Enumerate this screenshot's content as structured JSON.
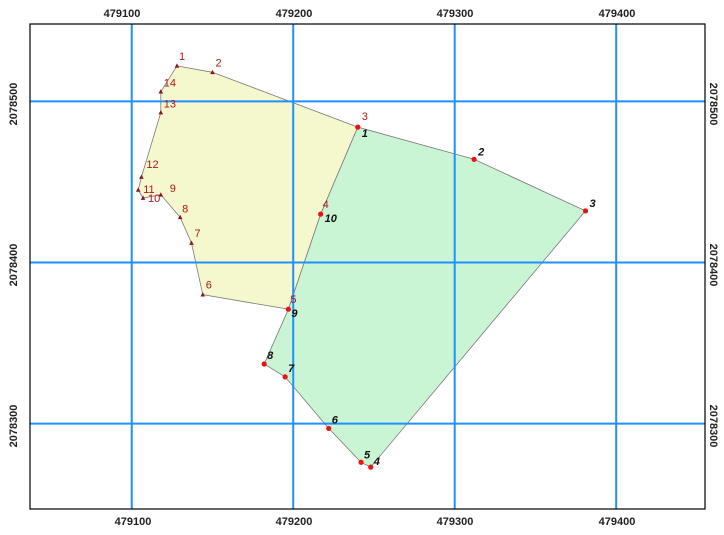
{
  "map": {
    "x_ticks": [
      "479100",
      "479200",
      "479300",
      "479400"
    ],
    "y_ticks": [
      "2078500",
      "2078400",
      "2078300"
    ],
    "colors": {
      "frame": "#000000",
      "grid": "#1e90ff",
      "parcel_a_fill": "#f5f7cc",
      "parcel_b_fill": "#c9f5d4",
      "outline": "#7a7a7a",
      "vertex_a": "#8b1a1a",
      "vertex_b": "#ee1111"
    },
    "parcel_a": {
      "vertices": [
        {
          "label": "1",
          "x": 479128,
          "y": 2078522
        },
        {
          "label": "2",
          "x": 479150,
          "y": 2078518
        },
        {
          "label": "3",
          "x": 479240,
          "y": 2078484
        },
        {
          "label": "4",
          "x": 479217,
          "y": 2078430
        },
        {
          "label": "5",
          "x": 479197,
          "y": 2078371
        },
        {
          "label": "6",
          "x": 479144,
          "y": 2078380
        },
        {
          "label": "7",
          "x": 479137,
          "y": 2078412
        },
        {
          "label": "8",
          "x": 479130,
          "y": 2078428
        },
        {
          "label": "9",
          "x": 479118,
          "y": 2078442
        },
        {
          "label": "10",
          "x": 479107,
          "y": 2078440
        },
        {
          "label": "11",
          "x": 479104,
          "y": 2078445
        },
        {
          "label": "12",
          "x": 479106,
          "y": 2078453
        },
        {
          "label": "13",
          "x": 479118,
          "y": 2078493
        },
        {
          "label": "14",
          "x": 479118,
          "y": 2078506
        }
      ]
    },
    "parcel_b": {
      "vertices": [
        {
          "label": "1",
          "x": 479240,
          "y": 2078484
        },
        {
          "label": "2",
          "x": 479312,
          "y": 2078464
        },
        {
          "label": "3",
          "x": 479381,
          "y": 2078432
        },
        {
          "label": "4",
          "x": 479248,
          "y": 2078273
        },
        {
          "label": "5",
          "x": 479242,
          "y": 2078276
        },
        {
          "label": "6",
          "x": 479222,
          "y": 2078297
        },
        {
          "label": "7",
          "x": 479195,
          "y": 2078329
        },
        {
          "label": "8",
          "x": 479182,
          "y": 2078337
        },
        {
          "label": "9",
          "x": 479197,
          "y": 2078371
        },
        {
          "label": "10",
          "x": 479217,
          "y": 2078430
        }
      ]
    }
  }
}
